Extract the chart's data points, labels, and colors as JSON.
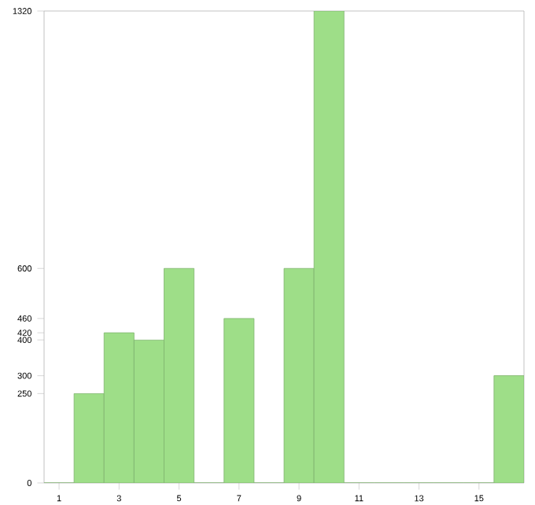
{
  "chart_data": {
    "type": "bar",
    "x": [
      1,
      2,
      3,
      4,
      5,
      6,
      7,
      8,
      9,
      10,
      11,
      12,
      13,
      14,
      15,
      16
    ],
    "values": [
      0,
      250,
      420,
      400,
      600,
      0,
      460,
      0,
      600,
      1320,
      0,
      0,
      0,
      0,
      0,
      300
    ],
    "color": "#9ede88",
    "xlim": [
      0.5,
      16.5
    ],
    "xticks": [
      1,
      3,
      5,
      7,
      9,
      11,
      13,
      15
    ],
    "ylim": [
      0,
      1320
    ],
    "yticks": [
      0,
      250,
      300,
      400,
      420,
      460,
      600,
      1320
    ]
  }
}
